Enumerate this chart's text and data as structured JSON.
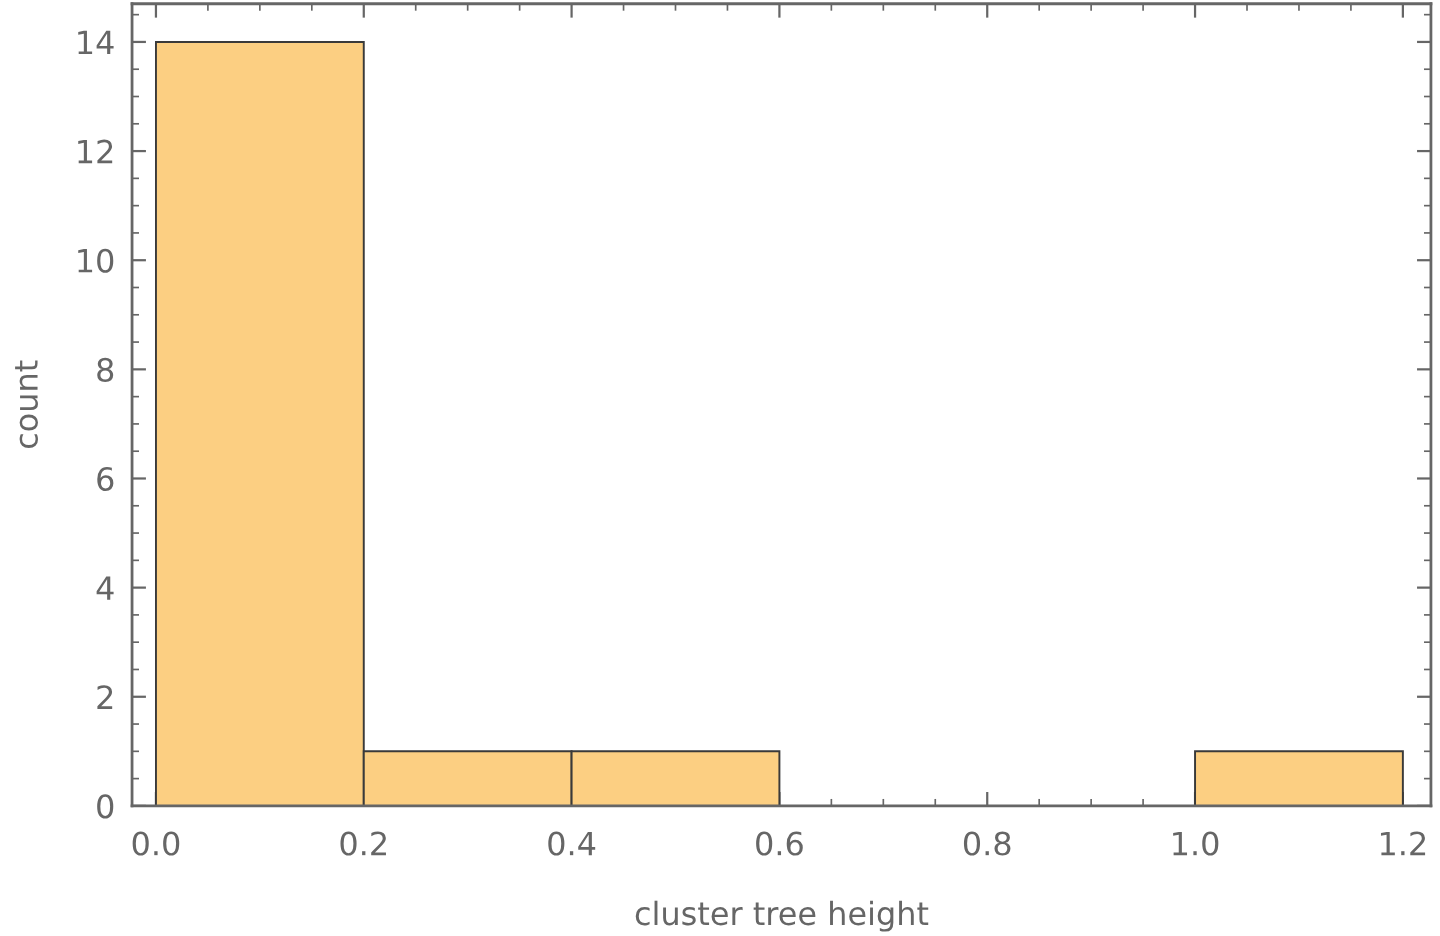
{
  "chart_data": {
    "type": "histogram",
    "xlabel": "cluster tree height",
    "ylabel": "count",
    "bins": [
      0,
      0.2,
      0.4,
      0.6,
      0.8,
      1.0,
      1.2
    ],
    "values": [
      14,
      1,
      1,
      0,
      0,
      1
    ],
    "color": "#fccf82",
    "xlim": [
      -0.023,
      1.227
    ],
    "ylim": [
      0,
      14.7
    ],
    "xticks": [
      {
        "value": 0,
        "label": "0.0"
      },
      {
        "value": 0.2,
        "label": "0.2"
      },
      {
        "value": 0.4,
        "label": "0.4"
      },
      {
        "value": 0.6,
        "label": "0.6"
      },
      {
        "value": 0.8,
        "label": "0.8"
      },
      {
        "value": 1.0,
        "label": "1.0"
      },
      {
        "value": 1.2,
        "label": "1.2"
      }
    ],
    "yticks": [
      0,
      2,
      4,
      6,
      8,
      10,
      12,
      14
    ]
  }
}
